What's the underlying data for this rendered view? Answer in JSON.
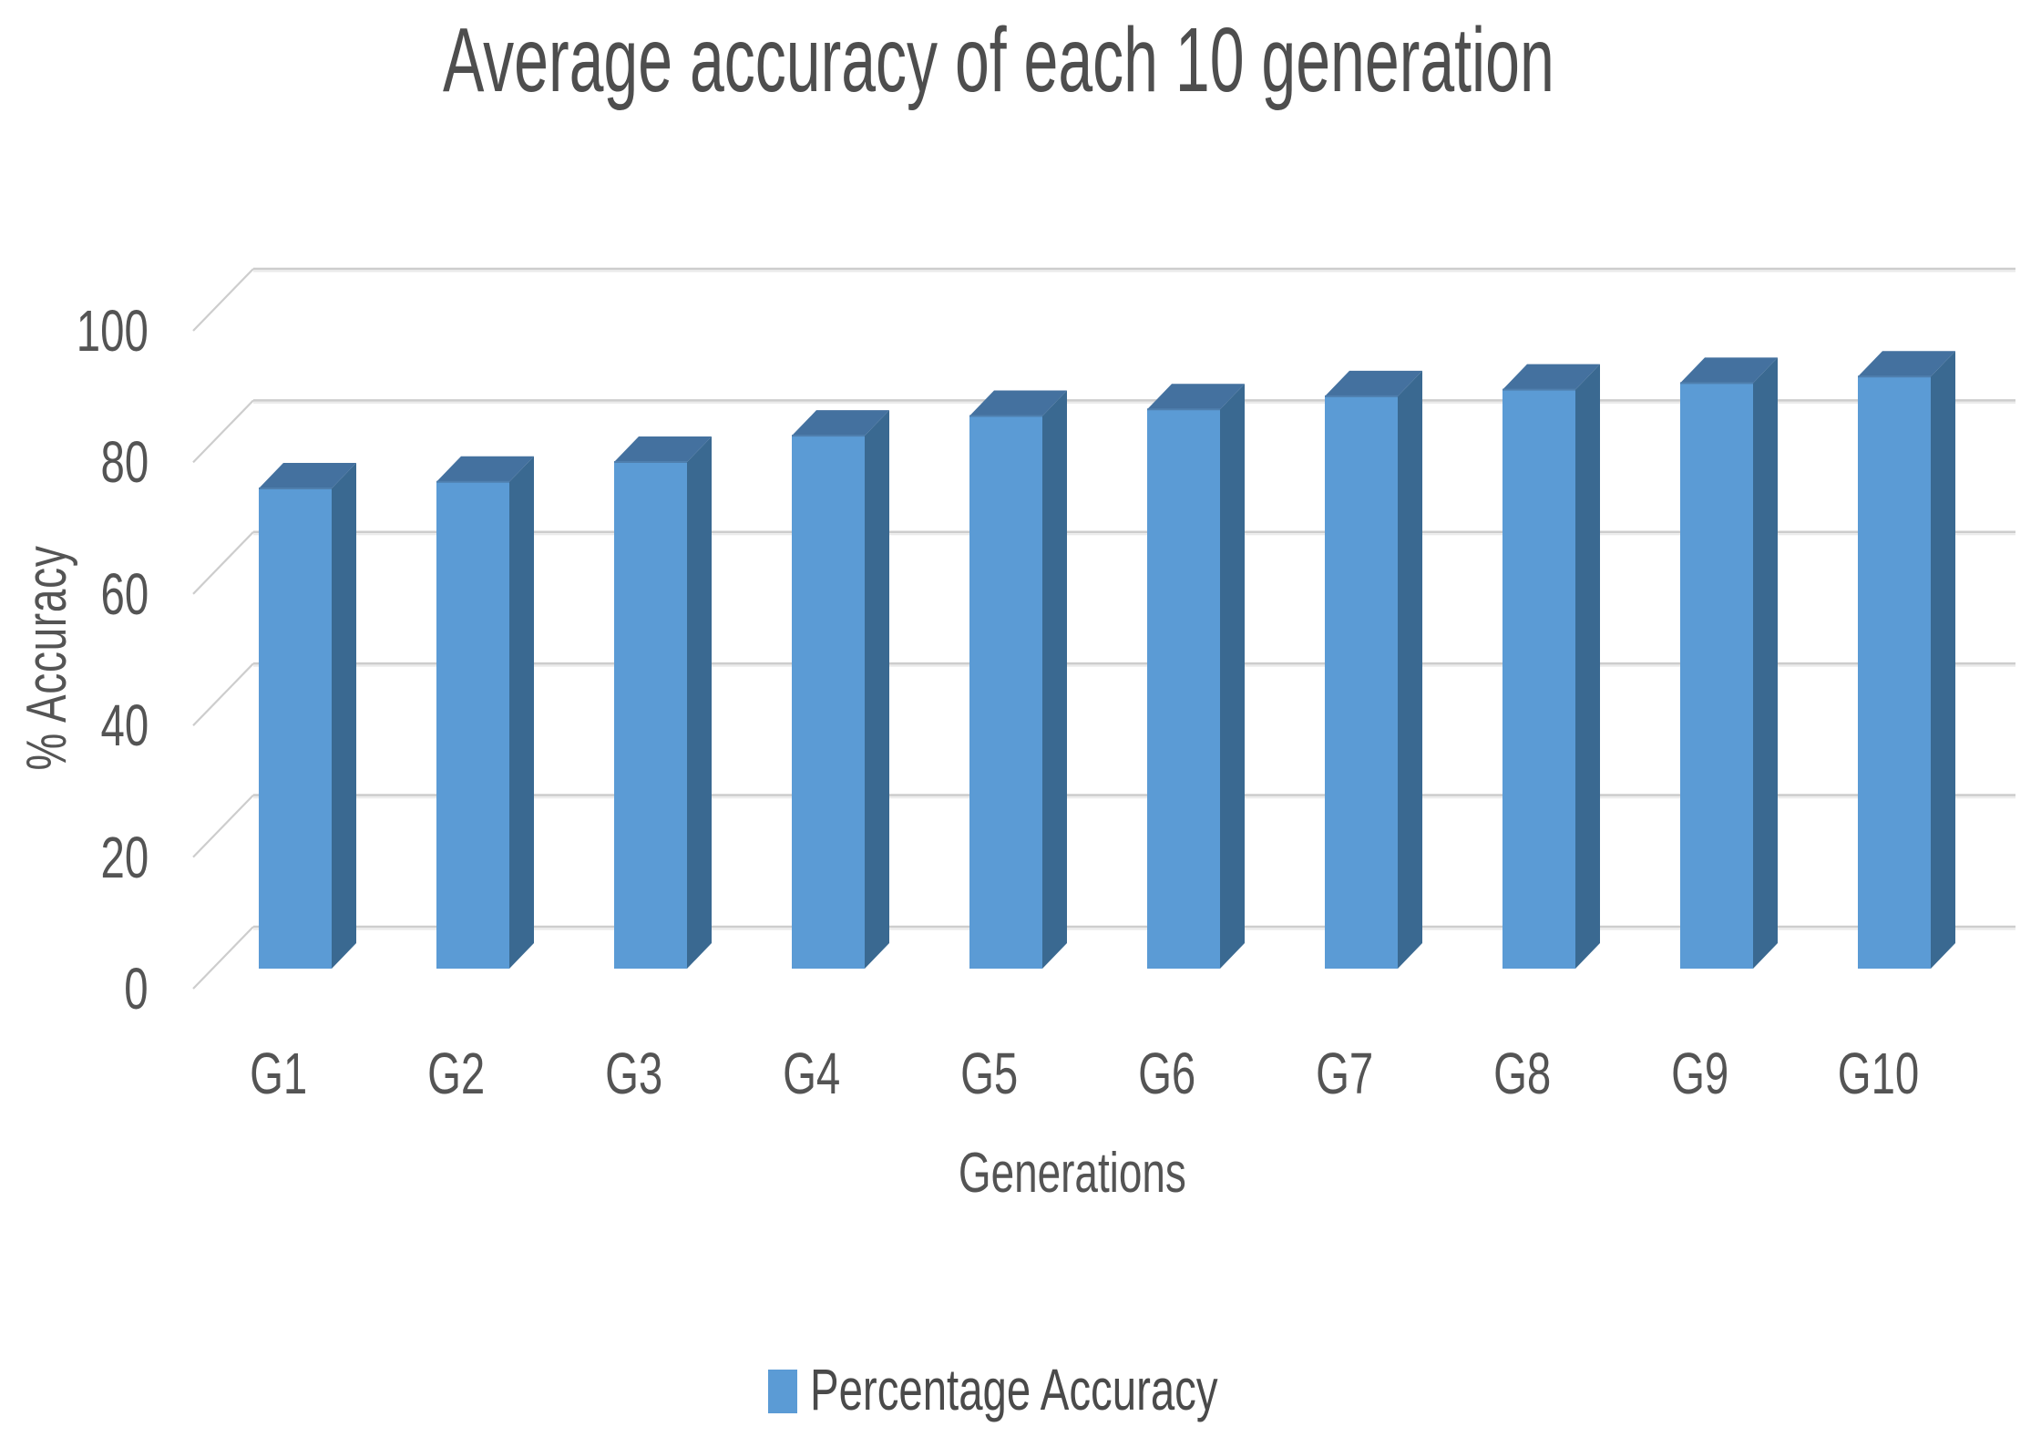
{
  "chart_data": {
    "type": "bar",
    "projection": "3d-column",
    "title": "Average accuracy of each 10 generation",
    "categories": [
      "G1",
      "G2",
      "G3",
      "G4",
      "G5",
      "G6",
      "G7",
      "G8",
      "G9",
      "G10"
    ],
    "series": [
      {
        "name": "Percentage Accuracy",
        "values": [
          73,
          74,
          77,
          81,
          84,
          85,
          87,
          88,
          89,
          90
        ]
      }
    ],
    "xlabel": "Generations",
    "ylabel": "% Accuracy",
    "ylim": [
      0,
      100
    ],
    "ytick_step": 20,
    "ytick_labels": [
      "0",
      "20",
      "40",
      "60",
      "80",
      "100"
    ],
    "grid": true,
    "legend_position": "bottom-center",
    "colors": {
      "bar_front": "#5b9bd5",
      "bar_side": "#3a6991",
      "bar_top": "#44719f",
      "bar_top_light": "#4f7fae",
      "gridline": "#cdcdcd",
      "gridline_highlight": "#ebebeb",
      "text": "#545454",
      "background": "#ffffff"
    }
  }
}
